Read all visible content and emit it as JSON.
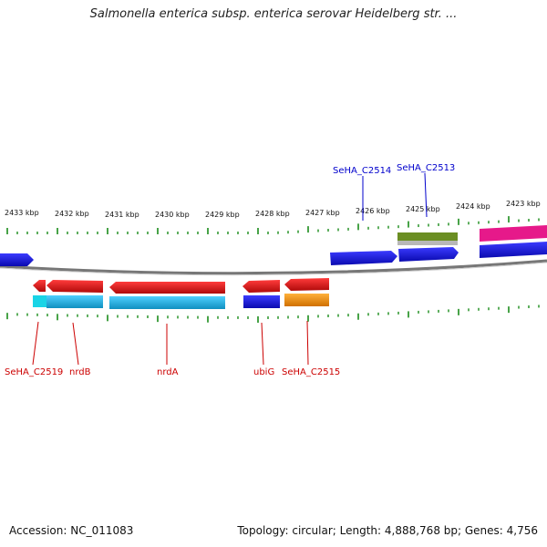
{
  "title": "Salmonella enterica subsp. enterica serovar Heidelberg str. ...",
  "footer": {
    "accession_label": "Accession:",
    "accession": "NC_011083",
    "topology_text": "Topology: circular; Length: 4,888,768 bp; Genes: 4,756"
  },
  "scale": {
    "labels": [
      "2433 kbp",
      "2432 kbp",
      "2431 kbp",
      "2430 kbp",
      "2429 kbp",
      "2428 kbp",
      "2427 kbp",
      "2426 kbp",
      "2425 kbp",
      "2424 kbp",
      "2423 kbp"
    ]
  },
  "genes": {
    "upper_labels": [
      "SeHA_C2514",
      "SeHA_C2513"
    ],
    "lower_labels": [
      "SeHA_C2519",
      "nrdB",
      "nrdA",
      "ubiG",
      "SeHA_C2515"
    ]
  },
  "colors": {
    "upper_label": "#0000cc",
    "lower_label": "#cc0000",
    "forward_gene": "#1a1ae6",
    "reverse_gene": "#e61a1a",
    "cyan_track": "#1ab8e6",
    "orange_track": "#ff9900",
    "olive_track": "#6b8e23",
    "pink_track": "#e6198a",
    "backbone": "#808080",
    "tick": "#1a8c1a"
  }
}
